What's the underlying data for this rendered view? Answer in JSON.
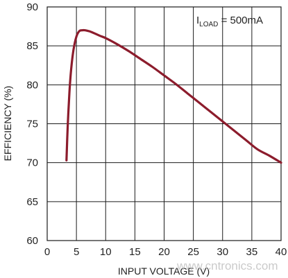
{
  "chart_data": {
    "type": "line",
    "xlabel": "INPUT VOLTAGE (V)",
    "ylabel": "EFFICIENCY (%)",
    "xlim": [
      0,
      40
    ],
    "ylim": [
      60,
      90
    ],
    "x_ticks": [
      "0",
      "5",
      "10",
      "15",
      "20",
      "25",
      "30",
      "35",
      "40"
    ],
    "y_ticks": [
      "60",
      "65",
      "70",
      "75",
      "80",
      "85",
      "90"
    ],
    "grid": true,
    "annotation": {
      "main": "I",
      "sub": "LOAD",
      "rest": " = 500mA"
    },
    "line_color": "#8c1c2c",
    "series": [
      {
        "x": [
          3.3,
          3.5,
          3.8,
          4.1,
          4.5,
          5.0,
          5.5,
          6.0,
          6.5,
          7.5,
          9,
          10,
          12,
          14,
          16,
          18,
          20,
          22,
          24,
          26,
          28,
          30,
          32,
          34,
          36,
          38,
          40
        ],
        "values": [
          70.3,
          74.5,
          79.0,
          82.0,
          84.5,
          86.2,
          86.9,
          87.0,
          87.0,
          86.8,
          86.3,
          86.0,
          85.2,
          84.3,
          83.3,
          82.3,
          81.2,
          80.1,
          78.9,
          77.7,
          76.5,
          75.3,
          74.1,
          72.9,
          71.7,
          70.9,
          70.0
        ]
      }
    ]
  },
  "watermark": "www.cntronics.com"
}
